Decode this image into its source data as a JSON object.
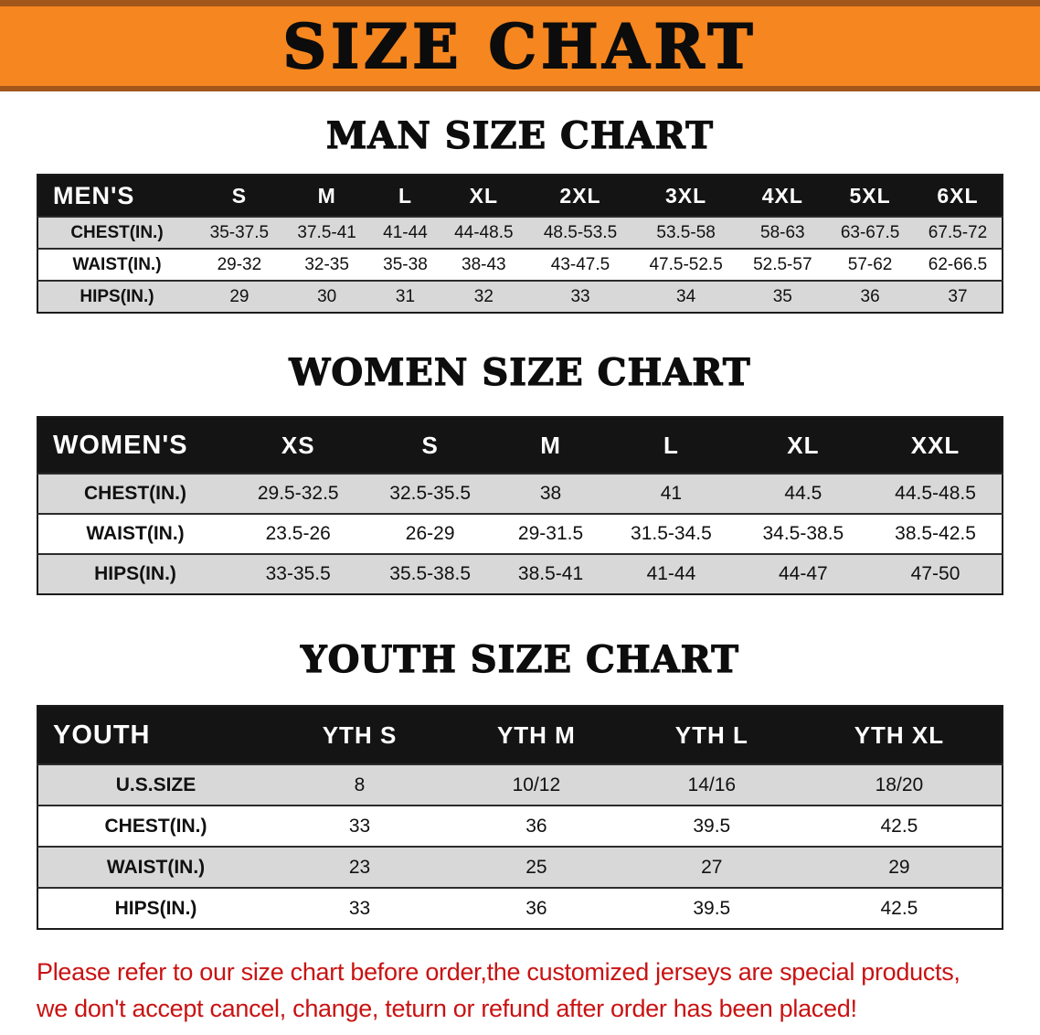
{
  "banner": {
    "title": "SIZE CHART",
    "bg_color": "#F6861F",
    "edge_color": "#A2561B"
  },
  "chart_data": [
    {
      "type": "table",
      "title": "MAN SIZE CHART",
      "columns": [
        "MEN'S",
        "S",
        "M",
        "L",
        "XL",
        "2XL",
        "3XL",
        "4XL",
        "5XL",
        "6XL"
      ],
      "rows": [
        {
          "label": "CHEST(IN.)",
          "values": [
            "35-37.5",
            "37.5-41",
            "41-44",
            "44-48.5",
            "48.5-53.5",
            "53.5-58",
            "58-63",
            "63-67.5",
            "67.5-72"
          ]
        },
        {
          "label": "WAIST(IN.)",
          "values": [
            "29-32",
            "32-35",
            "35-38",
            "38-43",
            "43-47.5",
            "47.5-52.5",
            "52.5-57",
            "57-62",
            "62-66.5"
          ]
        },
        {
          "label": "HIPS(IN.)",
          "values": [
            "29",
            "30",
            "31",
            "32",
            "33",
            "34",
            "35",
            "36",
            "37"
          ]
        }
      ]
    },
    {
      "type": "table",
      "title": "WOMEN SIZE CHART",
      "columns": [
        "WOMEN'S",
        "XS",
        "S",
        "M",
        "L",
        "XL",
        "XXL"
      ],
      "rows": [
        {
          "label": "CHEST(IN.)",
          "values": [
            "29.5-32.5",
            "32.5-35.5",
            "38",
            "41",
            "44.5",
            "44.5-48.5"
          ]
        },
        {
          "label": "WAIST(IN.)",
          "values": [
            "23.5-26",
            "26-29",
            "29-31.5",
            "31.5-34.5",
            "34.5-38.5",
            "38.5-42.5"
          ]
        },
        {
          "label": "HIPS(IN.)",
          "values": [
            "33-35.5",
            "35.5-38.5",
            "38.5-41",
            "41-44",
            "44-47",
            "47-50"
          ]
        }
      ]
    },
    {
      "type": "table",
      "title": "YOUTH SIZE CHART",
      "columns": [
        "YOUTH",
        "YTH S",
        "YTH M",
        "YTH L",
        "YTH XL"
      ],
      "rows": [
        {
          "label": "U.S.SIZE",
          "values": [
            "8",
            "10/12",
            "14/16",
            "18/20"
          ]
        },
        {
          "label": "CHEST(IN.)",
          "values": [
            "33",
            "36",
            "39.5",
            "42.5"
          ]
        },
        {
          "label": "WAIST(IN.)",
          "values": [
            "23",
            "25",
            "27",
            "29"
          ]
        },
        {
          "label": "HIPS(IN.)",
          "values": [
            "33",
            "36",
            "39.5",
            "42.5"
          ]
        }
      ]
    }
  ],
  "footer": {
    "line1": "Please refer to our size chart before order,the customized jerseys are special products,",
    "line2": "we don't accept cancel, change, teturn or refund after order has been placed!",
    "text_color": "#C91212"
  }
}
